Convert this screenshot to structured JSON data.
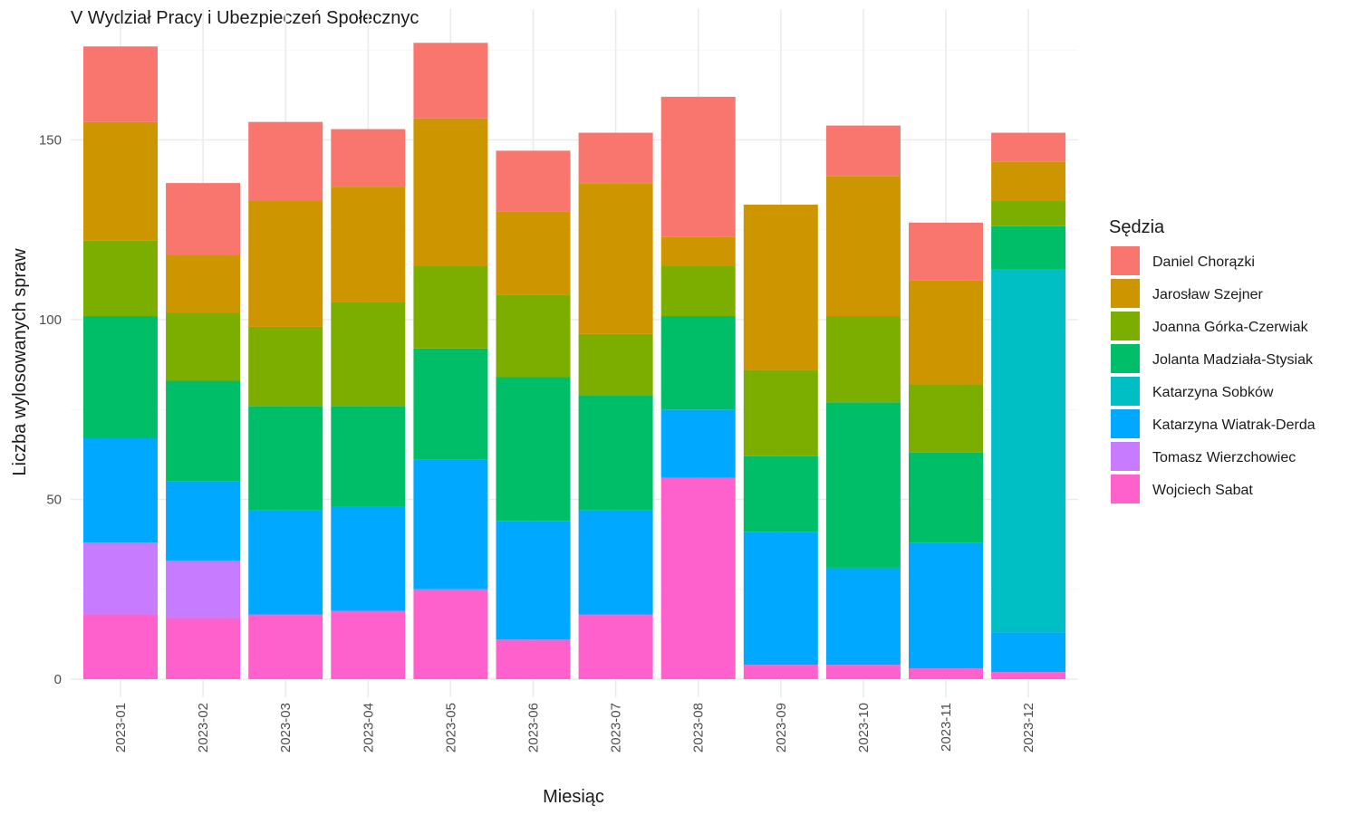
{
  "chart_data": {
    "type": "bar",
    "stacked": true,
    "title": "V Wydział Pracy i Ubezpieczeń Społecznyc",
    "xlabel": "Miesiąc",
    "ylabel": "Liczba wylosowanych spraw",
    "ylim": [
      0,
      177
    ],
    "yticks": [
      0,
      50,
      100,
      150
    ],
    "grid": true,
    "legend_title": "Sędzia",
    "legend_position": "right",
    "categories": [
      "2023-01",
      "2023-02",
      "2023-03",
      "2023-04",
      "2023-05",
      "2023-06",
      "2023-07",
      "2023-08",
      "2023-09",
      "2023-10",
      "2023-11",
      "2023-12"
    ],
    "series": [
      {
        "name": "Wojciech Sabat",
        "color": "#FF61CC",
        "values": [
          18,
          17,
          18,
          19,
          25,
          11,
          18,
          56,
          4,
          4,
          3,
          2
        ]
      },
      {
        "name": "Tomasz Wierzchowiec",
        "color": "#C77CFF",
        "values": [
          20,
          16,
          0,
          0,
          0,
          0,
          0,
          0,
          0,
          0,
          0,
          0
        ]
      },
      {
        "name": "Katarzyna Wiatrak-Derda",
        "color": "#00A9FF",
        "values": [
          29,
          22,
          29,
          29,
          36,
          33,
          29,
          19,
          37,
          27,
          35,
          11
        ]
      },
      {
        "name": "Katarzyna Sobków",
        "color": "#00BFC4",
        "values": [
          0,
          0,
          0,
          0,
          0,
          0,
          0,
          0,
          0,
          0,
          0,
          101
        ]
      },
      {
        "name": "Jolanta Madziała-Stysiak",
        "color": "#00BE67",
        "values": [
          34,
          28,
          29,
          28,
          31,
          40,
          32,
          26,
          21,
          46,
          25,
          12
        ]
      },
      {
        "name": "Joanna Górka-Czerwiak",
        "color": "#7CAE00",
        "values": [
          21,
          19,
          22,
          29,
          23,
          23,
          17,
          14,
          24,
          24,
          19,
          7
        ]
      },
      {
        "name": "Jarosław Szejner",
        "color": "#CD9600",
        "values": [
          33,
          16,
          35,
          32,
          41,
          23,
          42,
          8,
          46,
          39,
          29,
          11
        ]
      },
      {
        "name": "Daniel Chorązki",
        "color": "#F8766D",
        "values": [
          21,
          20,
          22,
          16,
          21,
          17,
          14,
          39,
          0,
          14,
          16,
          8
        ]
      }
    ],
    "legend_order": [
      "Daniel Chorązki",
      "Jarosław Szejner",
      "Joanna Górka-Czerwiak",
      "Jolanta Madziała-Stysiak",
      "Katarzyna Sobków",
      "Katarzyna Wiatrak-Derda",
      "Tomasz Wierzchowiec",
      "Wojciech Sabat"
    ]
  }
}
